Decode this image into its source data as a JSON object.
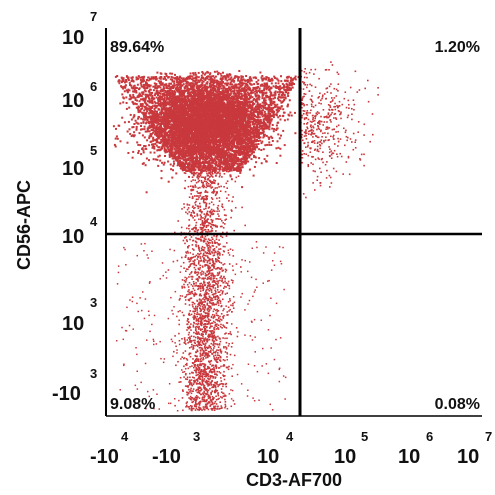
{
  "chart_data": {
    "type": "scatter",
    "title": "",
    "xlabel": "CD3-AF700",
    "ylabel": "CD56-APC",
    "point_color": "#c8383c",
    "x_ticks": [
      {
        "base": "-10",
        "exp": "4"
      },
      {
        "base": "-10",
        "exp": "3"
      },
      {
        "base": "10",
        "exp": "4"
      },
      {
        "base": "10",
        "exp": "5"
      },
      {
        "base": "10",
        "exp": "6"
      },
      {
        "base": "10",
        "exp": "7"
      }
    ],
    "y_ticks": [
      {
        "base": "10",
        "exp": "7"
      },
      {
        "base": "10",
        "exp": "6"
      },
      {
        "base": "10",
        "exp": "5"
      },
      {
        "base": "10",
        "exp": "4"
      },
      {
        "base": "10",
        "exp": "3"
      },
      {
        "base": "-10",
        "exp": "3"
      }
    ],
    "gate": {
      "x": "10^4",
      "y": "10^4"
    },
    "quadrants": [
      {
        "position": "top-left",
        "label": "89.64%"
      },
      {
        "position": "top-right",
        "label": "1.20%"
      },
      {
        "position": "bottom-left",
        "label": "9.08%"
      },
      {
        "position": "bottom-right",
        "label": "0.08%"
      }
    ]
  }
}
